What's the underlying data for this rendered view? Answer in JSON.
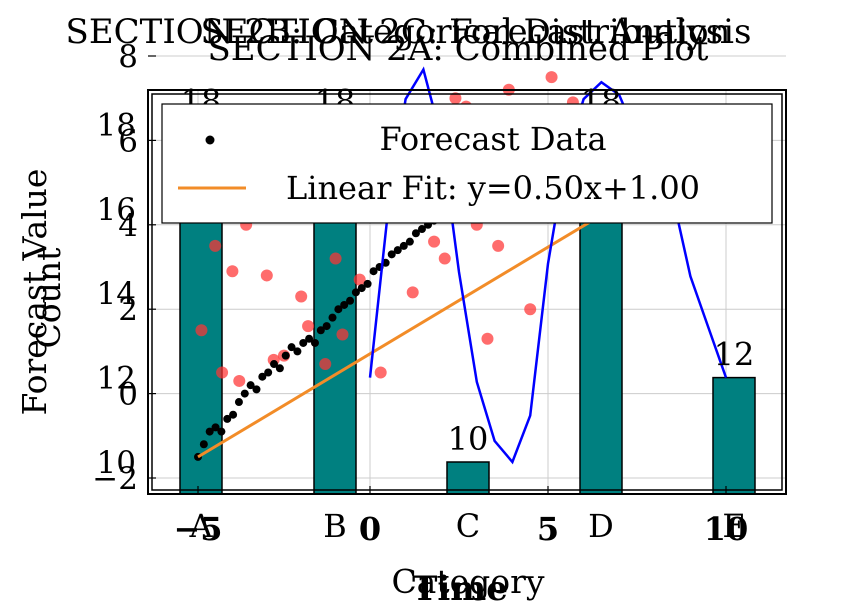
{
  "chart_data": [
    {
      "type": "bar",
      "title": "SECTION 2B: Categorical Distribution",
      "xlabel": "Category",
      "ylabel": "Count",
      "categories": [
        "A",
        "B",
        "C",
        "D",
        "E"
      ],
      "values": [
        18,
        18,
        10,
        18,
        12
      ],
      "ylim": [
        9.2,
        18.8
      ],
      "yticks": [
        10,
        12,
        14,
        16,
        18
      ],
      "value_labels": [
        "18",
        "18",
        "10",
        "18",
        "12"
      ],
      "bar_color": "#008080",
      "grid": true
    },
    {
      "type": "line",
      "title": "SECTION 2C: Forecast Analysis",
      "xlabel": "Time",
      "ylabel": "Forecast Value",
      "xlim": [
        -5.6,
        11.6
      ],
      "ylim": [
        -2.8,
        18.8
      ],
      "xticks": [
        -5,
        0,
        5,
        10
      ],
      "yticks": [
        -2,
        0,
        2,
        4,
        6,
        8,
        10,
        12,
        14,
        16,
        18
      ],
      "grid": true,
      "legend_position": "top",
      "series": [
        {
          "name": "Forecast Data",
          "type": "scatter",
          "color": "#000000",
          "x": [
            -5,
            -4.83,
            -4.66,
            -4.49,
            -4.32,
            -4.15,
            -3.98,
            -3.81,
            -3.64,
            -3.47,
            -3.3,
            -3.13,
            -2.96,
            -2.79,
            -2.62,
            -2.45,
            -2.28,
            -2.11,
            -1.94,
            -1.77,
            -1.6,
            -1.43,
            -1.26,
            -1.09,
            -0.92,
            -0.75,
            -0.58,
            -0.41,
            -0.24,
            -0.07,
            0.1,
            0.27,
            0.44,
            0.61,
            0.78,
            0.95,
            1.12,
            1.29,
            1.46,
            1.63,
            1.8,
            1.97,
            2.14,
            2.31,
            2.48,
            2.65,
            2.82,
            2.99,
            3.16,
            3.33,
            3.5,
            3.67,
            3.84,
            4.01,
            4.18,
            4.35,
            4.52,
            4.69,
            4.86,
            5.03
          ],
          "y": [
            -1.5,
            -1.2,
            -0.9,
            -0.8,
            -0.9,
            -0.6,
            -0.5,
            -0.2,
            0,
            0.2,
            0.1,
            0.4,
            0.5,
            0.7,
            0.6,
            0.9,
            1.1,
            1.0,
            1.2,
            1.3,
            1.2,
            1.5,
            1.6,
            1.8,
            2.0,
            2.1,
            2.2,
            2.4,
            2.5,
            2.6,
            2.9,
            3.0,
            3.1,
            3.3,
            3.4,
            3.5,
            3.6,
            3.8,
            3.9,
            4.0,
            4.1,
            4.3,
            4.4,
            4.5,
            4.6,
            4.8,
            4.9,
            5.0,
            5.1,
            5.3,
            5.4,
            5.5,
            5.7,
            5.8,
            5.9,
            6.0,
            6.2,
            6.3,
            6.4,
            6.5
          ]
        },
        {
          "name": "Linear Fit: y=0.50x+1.00",
          "type": "line",
          "color": "#f28c28",
          "x": [
            -5,
            10
          ],
          "y": [
            -1.5,
            6.0
          ]
        },
        {
          "name": "",
          "type": "scatter",
          "color": "#ff3333",
          "x": [
            -4.9,
            -4.7,
            -4.5,
            -4.3,
            -4.0,
            -3.8,
            -3.6,
            -3.3,
            -3.0,
            -2.8,
            -2.5,
            -2.2,
            -2.0,
            -1.8,
            -1.6,
            -1.3,
            -1.0,
            -0.8,
            -0.5,
            -0.3,
            0.0,
            0.3,
            0.6,
            0.9,
            1.2,
            1.5,
            1.8,
            2.1,
            2.4,
            2.7,
            3.0,
            3.3,
            3.6,
            3.9,
            4.2,
            4.5,
            4.8,
            5.1,
            5.4,
            5.7
          ],
          "y": [
            1.5,
            4.6,
            3.5,
            0.5,
            2.9,
            0.3,
            4.0,
            4.2,
            2.8,
            0.8,
            0.9,
            4.5,
            2.3,
            1.6,
            5.0,
            0.7,
            3.2,
            1.4,
            6.0,
            2.7,
            6.4,
            0.5,
            6.7,
            4.7,
            2.4,
            5.7,
            3.6,
            3.2,
            7.0,
            6.8,
            4.0,
            1.3,
            3.5,
            7.2,
            6.3,
            2.0,
            4.8,
            7.5,
            5.8,
            6.9
          ]
        },
        {
          "name": "",
          "type": "line",
          "color": "#0000ff",
          "x": [
            0,
            0.5,
            1,
            1.5,
            2,
            2.5,
            3,
            3.5,
            4,
            4.5,
            5,
            5.5,
            6,
            6.5,
            7,
            7.5,
            8,
            8.5,
            9,
            9.5,
            10
          ],
          "y": [
            12,
            15.9,
            18.6,
            19.3,
            17.7,
            14.5,
            11.9,
            10.5,
            10.0,
            11.1,
            14.7,
            17.2,
            18.6,
            19.0,
            18.7,
            17.7,
            17.5,
            16.3,
            14.4,
            13.2,
            12
          ]
        }
      ]
    },
    {
      "type": "bar",
      "title": "SECTION 2A: Combined Plot",
      "xlabel": "",
      "ylabel": ""
    }
  ]
}
